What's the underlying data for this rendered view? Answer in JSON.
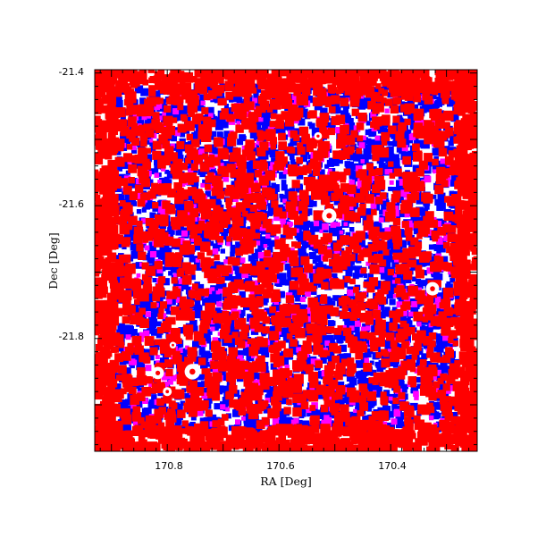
{
  "chart_data": {
    "type": "scatter",
    "title": "",
    "xlabel": "RA [Deg]",
    "ylabel": "Dec [Deg]",
    "xlim": [
      170.93,
      170.245
    ],
    "ylim": [
      -21.97,
      -21.395
    ],
    "x_reversed": true,
    "grid": false,
    "legend": "none",
    "x_ticks": [
      {
        "value": 170.8,
        "label": "170.8"
      },
      {
        "value": 170.6,
        "label": "170.6"
      },
      {
        "value": 170.4,
        "label": "170.4"
      }
    ],
    "y_ticks": [
      {
        "value": -21.4,
        "label": "-21.4"
      },
      {
        "value": -21.6,
        "label": "-21.6"
      },
      {
        "value": -21.8,
        "label": "-21.8"
      }
    ],
    "series_colors": {
      "outer": "#ff0000",
      "inner": "#0000ff",
      "accent": "#ff00ff"
    },
    "series": [
      {
        "color_key": "inner",
        "ra_range": [
          170.89,
          170.28
        ],
        "dec_range": [
          -21.94,
          -21.42
        ],
        "density": "very high"
      },
      {
        "color_key": "accent",
        "ra_range": [
          170.88,
          170.29
        ],
        "dec_range": [
          -21.93,
          -21.43
        ],
        "density": "medium"
      },
      {
        "color_key": "outer",
        "ra_range": [
          170.93,
          170.245
        ],
        "dec_range": [
          -21.97,
          -21.395
        ],
        "density": "very high"
      }
    ],
    "masked_regions": [
      {
        "ra": 170.51,
        "dec": -21.615,
        "radius": 0.013
      },
      {
        "ra": 170.325,
        "dec": -21.725,
        "radius": 0.012
      },
      {
        "ra": 170.755,
        "dec": -21.85,
        "radius": 0.014
      },
      {
        "ra": 170.817,
        "dec": -21.852,
        "radius": 0.011
      },
      {
        "ra": 170.8,
        "dec": -21.88,
        "radius": 0.008
      },
      {
        "ra": 170.53,
        "dec": -21.495,
        "radius": 0.007
      },
      {
        "ra": 170.79,
        "dec": -21.81,
        "radius": 0.006
      }
    ]
  }
}
